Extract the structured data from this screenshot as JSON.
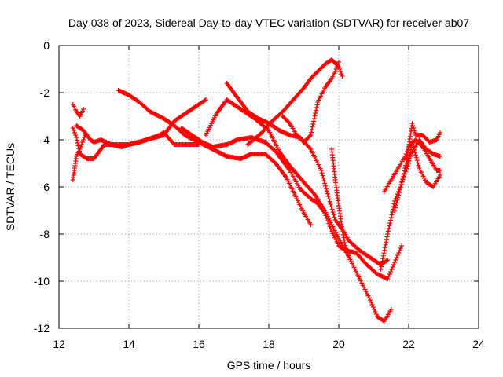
{
  "chart_data": {
    "type": "scatter",
    "title": "Day 038 of 2023, Sidereal Day-to-day VTEC variation (SDTVAR) for receiver ab07",
    "xlabel": "GPS time / hours",
    "ylabel": "SDTVAR / TECUs",
    "xlim": [
      12,
      24
    ],
    "ylim": [
      -12,
      0
    ],
    "x_ticks": [
      "12",
      "14",
      "16",
      "18",
      "20",
      "22",
      "24"
    ],
    "y_ticks": [
      "0",
      "-2",
      "-4",
      "-6",
      "-8",
      "-10",
      "-12"
    ],
    "x_tick_values": [
      12,
      14,
      16,
      18,
      20,
      22,
      24
    ],
    "y_tick_values": [
      0,
      -2,
      -4,
      -6,
      -8,
      -10,
      -12
    ],
    "grid": true,
    "marker": "plus",
    "marker_color": "#ff0000",
    "series": [
      {
        "x": [
          12.4,
          12.45,
          12.5,
          12.6,
          12.7,
          12.75
        ],
        "y": [
          -5.7,
          -5.2,
          -4.7,
          -4.4,
          -4.0,
          -3.8
        ]
      },
      {
        "x": [
          12.4,
          12.5,
          12.6,
          12.7
        ],
        "y": [
          -2.5,
          -2.8,
          -3.0,
          -2.7
        ]
      },
      {
        "x": [
          12.4,
          12.5,
          12.6,
          12.8,
          13.0,
          13.3,
          13.6,
          14.0,
          14.4,
          14.8,
          15.0,
          15.3,
          15.6,
          16.0
        ],
        "y": [
          -3.5,
          -3.9,
          -4.6,
          -4.8,
          -4.8,
          -4.2,
          -4.2,
          -4.2,
          -4.05,
          -3.85,
          -3.7,
          -4.2,
          -4.2,
          -4.2
        ]
      },
      {
        "x": [
          12.5,
          12.7,
          12.9,
          13.0,
          13.2,
          13.5,
          13.8,
          14.0,
          14.3,
          14.6,
          15.0,
          15.3,
          15.6,
          15.9,
          16.2
        ],
        "y": [
          -3.4,
          -3.6,
          -4.0,
          -4.1,
          -4.0,
          -4.2,
          -4.3,
          -4.2,
          -4.1,
          -3.95,
          -3.8,
          -3.2,
          -2.9,
          -2.6,
          -2.3
        ]
      },
      {
        "x": [
          13.7,
          14.0,
          14.3,
          14.6,
          15.0,
          15.3,
          15.6,
          16.0,
          16.4,
          16.8,
          17.2,
          17.5,
          17.9,
          18.2,
          18.5,
          18.8,
          19.0,
          19.2
        ],
        "y": [
          -1.9,
          -2.1,
          -2.4,
          -2.8,
          -3.1,
          -3.4,
          -3.8,
          -4.1,
          -4.4,
          -4.7,
          -4.8,
          -4.6,
          -4.6,
          -5.0,
          -5.6,
          -6.5,
          -7.1,
          -7.6
        ]
      },
      {
        "x": [
          15.5,
          15.8,
          16.1,
          16.4,
          16.8,
          17.1,
          17.5,
          17.9,
          18.2,
          18.6,
          18.9,
          19.2,
          19.4,
          19.6,
          19.8,
          20.0,
          20.2,
          20.5,
          20.8,
          21.1,
          21.4,
          21.6,
          21.8
        ],
        "y": [
          -3.5,
          -3.8,
          -4.1,
          -4.3,
          -4.2,
          -4.0,
          -3.9,
          -4.1,
          -4.5,
          -5.3,
          -6.1,
          -6.5,
          -6.7,
          -7.1,
          -7.9,
          -8.5,
          -8.7,
          -8.8,
          -9.3,
          -9.7,
          -9.9,
          -9.2,
          -8.5
        ]
      },
      {
        "x": [
          16.2,
          16.5,
          16.8,
          17.2,
          17.6,
          18.0,
          18.3,
          18.6,
          19.0,
          19.3,
          19.6,
          19.8,
          20.0,
          20.3,
          20.6,
          20.9,
          21.1,
          21.3,
          21.5
        ],
        "y": [
          -3.8,
          -2.9,
          -2.3,
          -2.7,
          -3.1,
          -3.6,
          -4.5,
          -5.1,
          -5.8,
          -6.3,
          -7.0,
          -7.6,
          -8.2,
          -9.0,
          -9.9,
          -10.8,
          -11.5,
          -11.7,
          -11.2
        ]
      },
      {
        "x": [
          16.8,
          17.1,
          17.4,
          17.7,
          18.0,
          18.3,
          18.6,
          18.9,
          19.2,
          19.5,
          19.7,
          19.9,
          20.1,
          20.3,
          20.6,
          20.9,
          21.2,
          21.4
        ],
        "y": [
          -1.6,
          -2.2,
          -2.8,
          -3.1,
          -3.3,
          -3.6,
          -3.8,
          -3.9,
          -4.4,
          -5.3,
          -6.4,
          -7.4,
          -7.8,
          -8.3,
          -8.7,
          -9.0,
          -9.3,
          -9.1
        ]
      },
      {
        "x": [
          17.4,
          17.8,
          18.1,
          18.4,
          18.7,
          19.0,
          19.2,
          19.4,
          19.6,
          19.8,
          20.0,
          20.1
        ],
        "y": [
          -4.2,
          -3.7,
          -3.2,
          -2.8,
          -2.3,
          -1.8,
          -1.4,
          -1.1,
          -0.8,
          -0.6,
          -0.9,
          -1.3
        ]
      },
      {
        "x": [
          18.4,
          18.6,
          18.8,
          19.0,
          19.2,
          19.4,
          19.6,
          19.8,
          19.9,
          20.0
        ],
        "y": [
          -3.0,
          -3.3,
          -3.8,
          -4.1,
          -3.8,
          -2.4,
          -1.8,
          -1.4,
          -1.1,
          -0.7
        ]
      },
      {
        "x": [
          19.8,
          19.9,
          20.0,
          20.1,
          20.2,
          20.3
        ],
        "y": [
          -4.4,
          -5.7,
          -6.8,
          -7.8,
          -8.6,
          -9.0
        ]
      },
      {
        "x": [
          21.3,
          21.5,
          21.7,
          21.9,
          22.0,
          22.1,
          22.2,
          22.4,
          22.6,
          22.8,
          22.9
        ],
        "y": [
          -6.2,
          -5.7,
          -5.2,
          -4.7,
          -4.3,
          -3.3,
          -3.8,
          -3.8,
          -4.1,
          -4.0,
          -3.7
        ]
      },
      {
        "x": [
          21.2,
          21.4,
          21.6,
          21.8,
          21.9,
          22.0,
          22.2,
          22.4,
          22.6,
          22.8,
          22.9
        ],
        "y": [
          -9.5,
          -8.0,
          -6.6,
          -5.9,
          -5.2,
          -4.3,
          -4.0,
          -4.3,
          -4.8,
          -5.3,
          -5.3
        ]
      },
      {
        "x": [
          21.6,
          21.8,
          22.0,
          22.1,
          22.3,
          22.5,
          22.7,
          22.9
        ],
        "y": [
          -7.0,
          -5.8,
          -5.0,
          -4.1,
          -5.2,
          -5.8,
          -6.0,
          -5.5
        ]
      },
      {
        "x": [
          21.9,
          22.1,
          22.3,
          22.5,
          22.7,
          22.9
        ],
        "y": [
          -5.2,
          -4.5,
          -4.0,
          -4.4,
          -4.6,
          -4.7
        ]
      }
    ]
  }
}
